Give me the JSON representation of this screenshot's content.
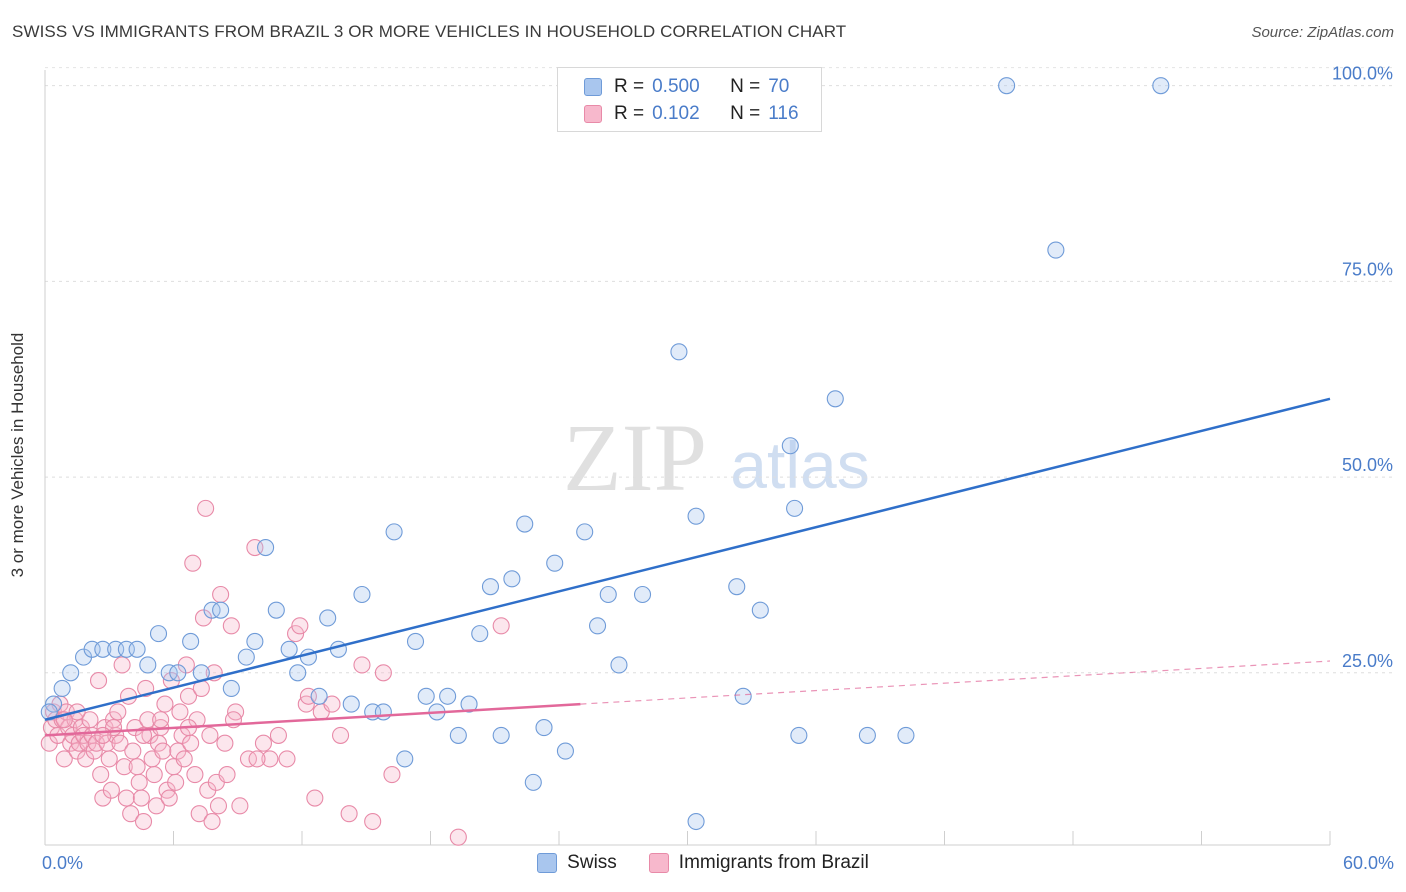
{
  "title": "SWISS VS IMMIGRANTS FROM BRAZIL 3 OR MORE VEHICLES IN HOUSEHOLD CORRELATION CHART",
  "source": "Source: ZipAtlas.com",
  "watermark": {
    "zip": "ZIP",
    "atlas": "atlas"
  },
  "legend": {
    "rows": [
      {
        "r_label": "R =",
        "r_value": "0.500",
        "n_label": "N =",
        "n_value": "70",
        "color": "#a9c6ee",
        "stroke": "#6f9bd8"
      },
      {
        "r_label": "R =",
        "r_value": "0.102",
        "n_label": "N =",
        "n_value": "116",
        "color": "#f7b8cc",
        "stroke": "#e88aa8"
      }
    ]
  },
  "bottom_legend": [
    {
      "label": "Swiss",
      "color": "#a9c6ee",
      "stroke": "#6f9bd8"
    },
    {
      "label": "Immigrants from Brazil",
      "color": "#f7b8cc",
      "stroke": "#e88aa8"
    }
  ],
  "chart_data": {
    "type": "scatter",
    "title": "SWISS VS IMMIGRANTS FROM BRAZIL 3 OR MORE VEHICLES IN HOUSEHOLD CORRELATION CHART",
    "xlabel": "",
    "ylabel": "3 or more Vehicles in Household",
    "xlim": [
      0,
      60
    ],
    "ylim": [
      3,
      102
    ],
    "x_tick_labels": [
      "0.0%",
      "60.0%"
    ],
    "y_ticks": [
      25,
      50,
      75,
      100
    ],
    "y_tick_labels": [
      "25.0%",
      "50.0%",
      "75.0%",
      "100.0%"
    ],
    "grid": true,
    "legend_position": "top-center",
    "colors": {
      "swiss": "#6f9bd8",
      "brazil": "#e88aa8",
      "swiss_line": "#2f6fc9",
      "brazil_line": "#e2689a"
    },
    "series": [
      {
        "name": "Swiss",
        "trend": {
          "x": [
            0,
            60
          ],
          "y": [
            19,
            60
          ]
        },
        "points": [
          [
            0.4,
            21
          ],
          [
            0.8,
            23
          ],
          [
            1.2,
            25
          ],
          [
            1.8,
            27
          ],
          [
            2.2,
            28
          ],
          [
            2.7,
            28
          ],
          [
            3.3,
            28
          ],
          [
            3.8,
            28
          ],
          [
            4.3,
            28
          ],
          [
            4.8,
            26
          ],
          [
            5.3,
            30
          ],
          [
            5.8,
            25
          ],
          [
            6.2,
            25
          ],
          [
            6.8,
            29
          ],
          [
            7.3,
            25
          ],
          [
            7.8,
            33
          ],
          [
            8.2,
            33
          ],
          [
            8.7,
            23
          ],
          [
            9.4,
            27
          ],
          [
            9.8,
            29
          ],
          [
            10.3,
            41
          ],
          [
            10.8,
            33
          ],
          [
            11.4,
            28
          ],
          [
            11.8,
            25
          ],
          [
            12.3,
            27
          ],
          [
            12.8,
            22
          ],
          [
            13.2,
            32
          ],
          [
            13.7,
            28
          ],
          [
            14.3,
            21
          ],
          [
            14.8,
            35
          ],
          [
            15.3,
            20
          ],
          [
            15.8,
            20
          ],
          [
            16.3,
            43
          ],
          [
            16.8,
            14
          ],
          [
            17.3,
            29
          ],
          [
            17.8,
            22
          ],
          [
            18.3,
            20
          ],
          [
            18.8,
            22
          ],
          [
            19.3,
            17
          ],
          [
            19.8,
            21
          ],
          [
            20.3,
            30
          ],
          [
            20.8,
            36
          ],
          [
            21.3,
            17
          ],
          [
            21.8,
            37
          ],
          [
            22.4,
            44
          ],
          [
            22.8,
            11
          ],
          [
            23.3,
            18
          ],
          [
            23.8,
            39
          ],
          [
            24.3,
            15
          ],
          [
            25.2,
            43
          ],
          [
            25.8,
            31
          ],
          [
            26.3,
            35
          ],
          [
            26.8,
            26
          ],
          [
            27.9,
            35
          ],
          [
            29.6,
            66
          ],
          [
            30.4,
            45
          ],
          [
            32.3,
            36
          ],
          [
            32.6,
            22
          ],
          [
            33.4,
            33
          ],
          [
            34.8,
            54
          ],
          [
            35.0,
            46
          ],
          [
            35.2,
            17
          ],
          [
            36.9,
            60
          ],
          [
            38.4,
            17
          ],
          [
            40.2,
            17
          ],
          [
            44.9,
            100
          ],
          [
            47.2,
            79
          ],
          [
            52.1,
            100
          ],
          [
            30.4,
            6
          ],
          [
            0.2,
            20
          ]
        ]
      },
      {
        "name": "Immigrants from Brazil",
        "trend": {
          "x": [
            0,
            25
          ],
          "y": [
            17,
            21
          ]
        },
        "trend_extension": {
          "x": [
            25,
            60
          ],
          "y": [
            21,
            26.5
          ]
        },
        "points": [
          [
            0.2,
            16
          ],
          [
            0.3,
            18
          ],
          [
            0.4,
            20
          ],
          [
            0.5,
            19
          ],
          [
            0.6,
            17
          ],
          [
            0.7,
            21
          ],
          [
            0.8,
            19
          ],
          [
            0.9,
            14
          ],
          [
            1.0,
            20
          ],
          [
            1.1,
            18
          ],
          [
            1.2,
            16
          ],
          [
            1.3,
            17
          ],
          [
            1.4,
            19
          ],
          [
            1.5,
            15
          ],
          [
            1.6,
            16
          ],
          [
            1.7,
            18
          ],
          [
            1.8,
            17
          ],
          [
            1.9,
            14
          ],
          [
            2.0,
            16
          ],
          [
            2.1,
            19
          ],
          [
            2.2,
            17
          ],
          [
            2.3,
            15
          ],
          [
            2.4,
            16
          ],
          [
            2.5,
            24
          ],
          [
            2.6,
            12
          ],
          [
            2.7,
            9
          ],
          [
            2.8,
            18
          ],
          [
            2.9,
            16
          ],
          [
            3.0,
            14
          ],
          [
            3.1,
            10
          ],
          [
            3.2,
            19
          ],
          [
            3.3,
            17
          ],
          [
            3.4,
            20
          ],
          [
            3.5,
            16
          ],
          [
            3.6,
            26
          ],
          [
            3.7,
            13
          ],
          [
            3.8,
            9
          ],
          [
            3.9,
            22
          ],
          [
            4.0,
            7
          ],
          [
            4.1,
            15
          ],
          [
            4.2,
            18
          ],
          [
            4.3,
            13
          ],
          [
            4.4,
            11
          ],
          [
            4.5,
            9
          ],
          [
            4.6,
            6
          ],
          [
            4.7,
            23
          ],
          [
            4.8,
            19
          ],
          [
            4.9,
            17
          ],
          [
            5.0,
            14
          ],
          [
            5.1,
            12
          ],
          [
            5.2,
            8
          ],
          [
            5.3,
            16
          ],
          [
            5.4,
            18
          ],
          [
            5.5,
            15
          ],
          [
            5.6,
            21
          ],
          [
            5.7,
            10
          ],
          [
            5.8,
            9
          ],
          [
            5.9,
            24
          ],
          [
            6.0,
            13
          ],
          [
            6.1,
            11
          ],
          [
            6.2,
            15
          ],
          [
            6.3,
            20
          ],
          [
            6.4,
            17
          ],
          [
            6.5,
            14
          ],
          [
            6.6,
            26
          ],
          [
            6.7,
            22
          ],
          [
            6.8,
            16
          ],
          [
            6.9,
            39
          ],
          [
            7.0,
            12
          ],
          [
            7.1,
            19
          ],
          [
            7.2,
            7
          ],
          [
            7.3,
            23
          ],
          [
            7.4,
            32
          ],
          [
            7.5,
            46
          ],
          [
            7.6,
            10
          ],
          [
            7.7,
            17
          ],
          [
            7.8,
            6
          ],
          [
            7.9,
            25
          ],
          [
            8.0,
            11
          ],
          [
            8.1,
            8
          ],
          [
            8.2,
            35
          ],
          [
            8.4,
            16
          ],
          [
            8.5,
            12
          ],
          [
            8.7,
            31
          ],
          [
            8.9,
            20
          ],
          [
            9.1,
            8
          ],
          [
            9.5,
            14
          ],
          [
            9.8,
            41
          ],
          [
            10.2,
            16
          ],
          [
            10.5,
            14
          ],
          [
            10.9,
            17
          ],
          [
            11.3,
            14
          ],
          [
            11.7,
            30
          ],
          [
            12.2,
            21
          ],
          [
            12.6,
            9
          ],
          [
            12.9,
            20
          ],
          [
            13.4,
            21
          ],
          [
            13.8,
            17
          ],
          [
            14.2,
            7
          ],
          [
            14.8,
            26
          ],
          [
            15.3,
            6
          ],
          [
            15.8,
            25
          ],
          [
            16.2,
            12
          ],
          [
            19.3,
            4
          ],
          [
            21.3,
            31
          ],
          [
            11.9,
            31
          ],
          [
            9.9,
            14
          ],
          [
            5.4,
            19
          ],
          [
            3.2,
            18
          ],
          [
            1.5,
            20
          ],
          [
            2.7,
            17
          ],
          [
            4.6,
            17
          ],
          [
            6.7,
            18
          ],
          [
            0.9,
            19
          ],
          [
            12.3,
            22
          ],
          [
            8.8,
            19
          ]
        ]
      }
    ]
  }
}
